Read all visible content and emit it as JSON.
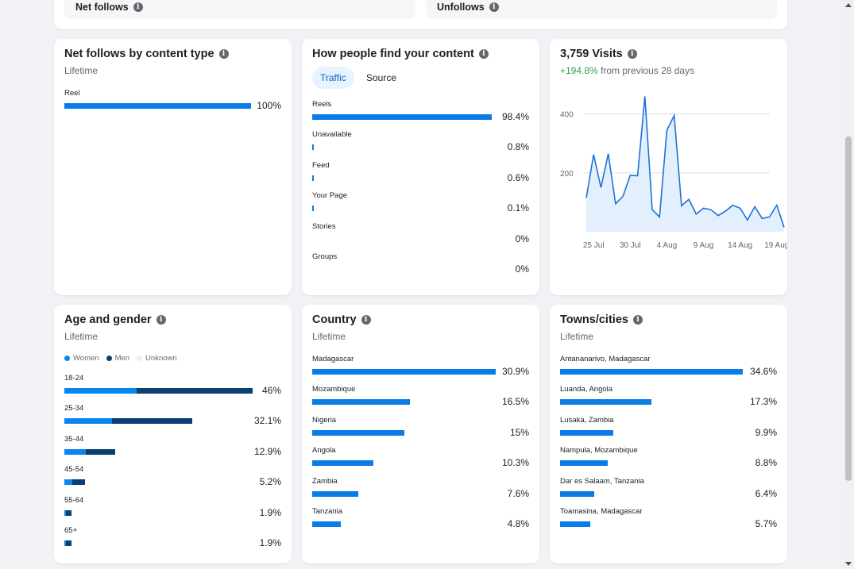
{
  "top_cards": {
    "net_follows_label": "Net follows",
    "unfollows_label": "Unfollows"
  },
  "net_follows_by_type": {
    "title": "Net follows by content type",
    "subtitle": "Lifetime",
    "rows": [
      {
        "label": "Reel",
        "value": "100%",
        "fraction": 1.0
      }
    ]
  },
  "find_content": {
    "title": "How people find your content",
    "tabs": [
      "Traffic",
      "Source"
    ],
    "active_tab": "Traffic",
    "rows": [
      {
        "label": "Reels",
        "value": "98.4%",
        "fraction": 0.984
      },
      {
        "label": "Unavailable",
        "value": "0.8%",
        "fraction": 0.008
      },
      {
        "label": "Feed",
        "value": "0.6%",
        "fraction": 0.006
      },
      {
        "label": "Your Page",
        "value": "0.1%",
        "fraction": 0.002
      },
      {
        "label": "Stories",
        "value": "0%",
        "fraction": 0
      },
      {
        "label": "Groups",
        "value": "0%",
        "fraction": 0
      }
    ]
  },
  "visits": {
    "title": "3,759 Visits",
    "change": "+194.8%",
    "change_suffix": " from previous 28 days",
    "change_color": "#31a24c"
  },
  "chart_data": {
    "type": "area",
    "title": "3,759 Visits",
    "xlabel": "",
    "ylabel": "",
    "x_tick_labels": [
      "25 Jul",
      "30 Jul",
      "4 Aug",
      "9 Aug",
      "14 Aug",
      "19 Aug"
    ],
    "y_tick_labels": [
      "200",
      "400"
    ],
    "ylim": [
      0,
      480
    ],
    "x_dates": [
      "24 Jul",
      "25 Jul",
      "26 Jul",
      "27 Jul",
      "28 Jul",
      "29 Jul",
      "30 Jul",
      "31 Jul",
      "1 Aug",
      "2 Aug",
      "3 Aug",
      "4 Aug",
      "5 Aug",
      "6 Aug",
      "7 Aug",
      "8 Aug",
      "9 Aug",
      "10 Aug",
      "11 Aug",
      "12 Aug",
      "13 Aug",
      "14 Aug",
      "15 Aug",
      "16 Aug",
      "17 Aug",
      "18 Aug",
      "19 Aug",
      "20 Aug"
    ],
    "values": [
      115,
      262,
      150,
      265,
      95,
      120,
      192,
      190,
      460,
      75,
      50,
      345,
      395,
      88,
      110,
      60,
      80,
      75,
      55,
      70,
      90,
      80,
      40,
      85,
      45,
      50,
      90,
      15
    ],
    "grid": true,
    "color": "#1a73d9",
    "fill": "#e3effc"
  },
  "age_gender": {
    "title": "Age and gender",
    "subtitle": "Lifetime",
    "legend": [
      {
        "label": "Women",
        "color": "#0a86f0"
      },
      {
        "label": "Men",
        "color": "#0a3f70"
      },
      {
        "label": "Unknown",
        "color": "#e4f0fb"
      }
    ],
    "rows": [
      {
        "label": "18-24",
        "value": "46%",
        "women": 0.386,
        "men": 0.614,
        "total": 1.0
      },
      {
        "label": "25-34",
        "value": "32.1%",
        "women": 0.37,
        "men": 0.63,
        "total": 0.68
      },
      {
        "label": "35-44",
        "value": "12.9%",
        "women": 0.42,
        "men": 0.58,
        "total": 0.27
      },
      {
        "label": "45-54",
        "value": "5.2%",
        "women": 0.38,
        "men": 0.62,
        "total": 0.11
      },
      {
        "label": "55-64",
        "value": "1.9%",
        "women": 0.2,
        "men": 0.8,
        "total": 0.04
      },
      {
        "label": "65+",
        "value": "1.9%",
        "women": 0.2,
        "men": 0.8,
        "total": 0.04
      }
    ]
  },
  "country": {
    "title": "Country",
    "subtitle": "Lifetime",
    "rows": [
      {
        "label": "Madagascar",
        "value": "30.9%",
        "fraction": 1.0
      },
      {
        "label": "Mozambique",
        "value": "16.5%",
        "fraction": 0.534
      },
      {
        "label": "Nigeria",
        "value": "15%",
        "fraction": 0.503
      },
      {
        "label": "Angola",
        "value": "10.3%",
        "fraction": 0.335
      },
      {
        "label": "Zambia",
        "value": "7.6%",
        "fraction": 0.253
      },
      {
        "label": "Tanzania",
        "value": "4.8%",
        "fraction": 0.155
      }
    ]
  },
  "towns": {
    "title": "Towns/cities",
    "subtitle": "Lifetime",
    "rows": [
      {
        "label": "Antananarivo, Madagascar",
        "value": "34.6%",
        "fraction": 1.0
      },
      {
        "label": "Luanda, Angola",
        "value": "17.3%",
        "fraction": 0.5
      },
      {
        "label": "Lusaka, Zambia",
        "value": "9.9%",
        "fraction": 0.29
      },
      {
        "label": "Nampula, Mozambique",
        "value": "8.8%",
        "fraction": 0.26
      },
      {
        "label": "Dar es Salaam, Tanzania",
        "value": "6.4%",
        "fraction": 0.185
      },
      {
        "label": "Toamasina, Madagascar",
        "value": "5.7%",
        "fraction": 0.165
      }
    ]
  }
}
